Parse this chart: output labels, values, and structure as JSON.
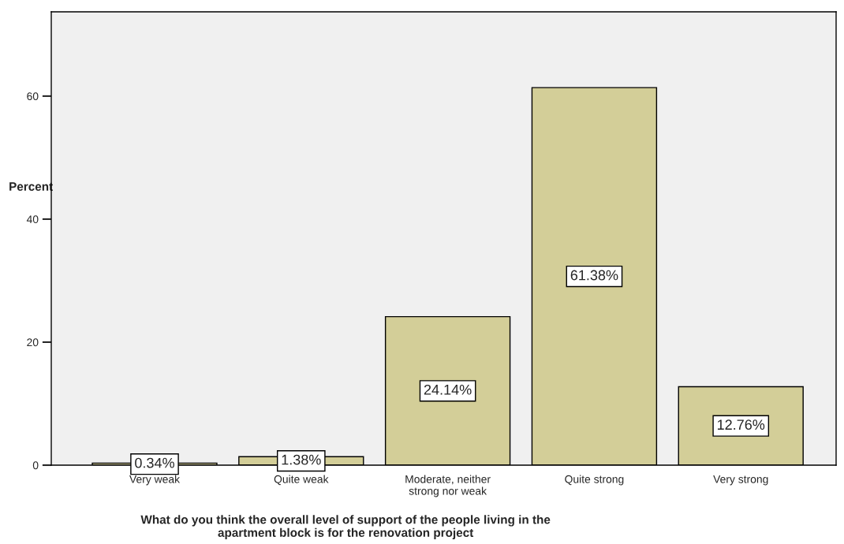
{
  "chart_data": {
    "type": "bar",
    "categories": [
      "Very weak",
      "Quite weak",
      "Moderate, neither\nstrong nor weak",
      "Quite strong",
      "Very strong"
    ],
    "values": [
      0.34,
      1.38,
      24.14,
      61.38,
      12.76
    ],
    "value_labels": [
      "0.34%",
      "1.38%",
      "24.14%",
      "61.38%",
      "12.76%"
    ],
    "color": "#d3ce98",
    "ylabel": "Percent",
    "xlabel": "What do you think the overall level of support of the people living in the\napartment block is for the renovation project",
    "ylim": [
      0,
      73.7
    ],
    "yticks": [
      0,
      20,
      40,
      60
    ],
    "grid": false,
    "legend": false
  }
}
